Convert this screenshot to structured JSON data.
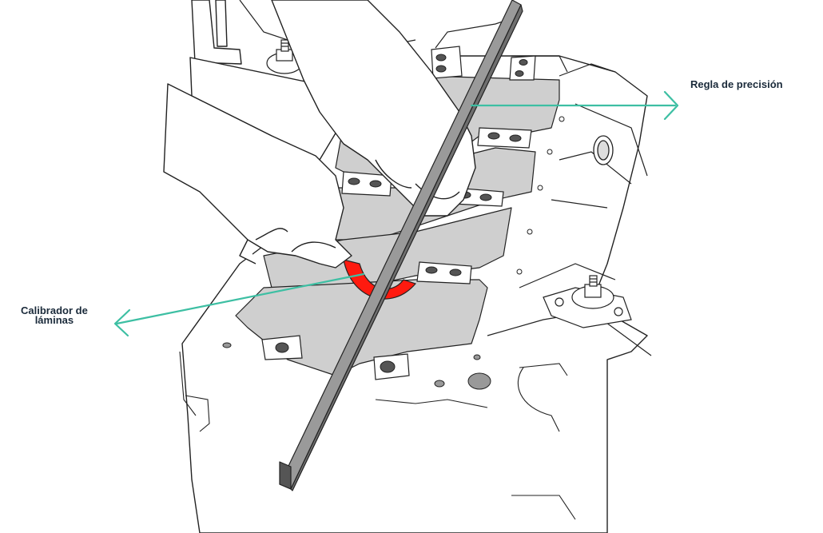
{
  "colors": {
    "line": "#222222",
    "surface": "#cfcfcf",
    "highlight": "#ff1a0f",
    "ruler_top": "#9a9a9a",
    "ruler_face": "#6f6f6f",
    "callout": "#3dbfa3",
    "label_text": "#1a2a3a"
  },
  "labels": {
    "ruler": "Regla de precisión",
    "feeler_line1": "Calibrador de",
    "feeler_line2": "láminas"
  }
}
